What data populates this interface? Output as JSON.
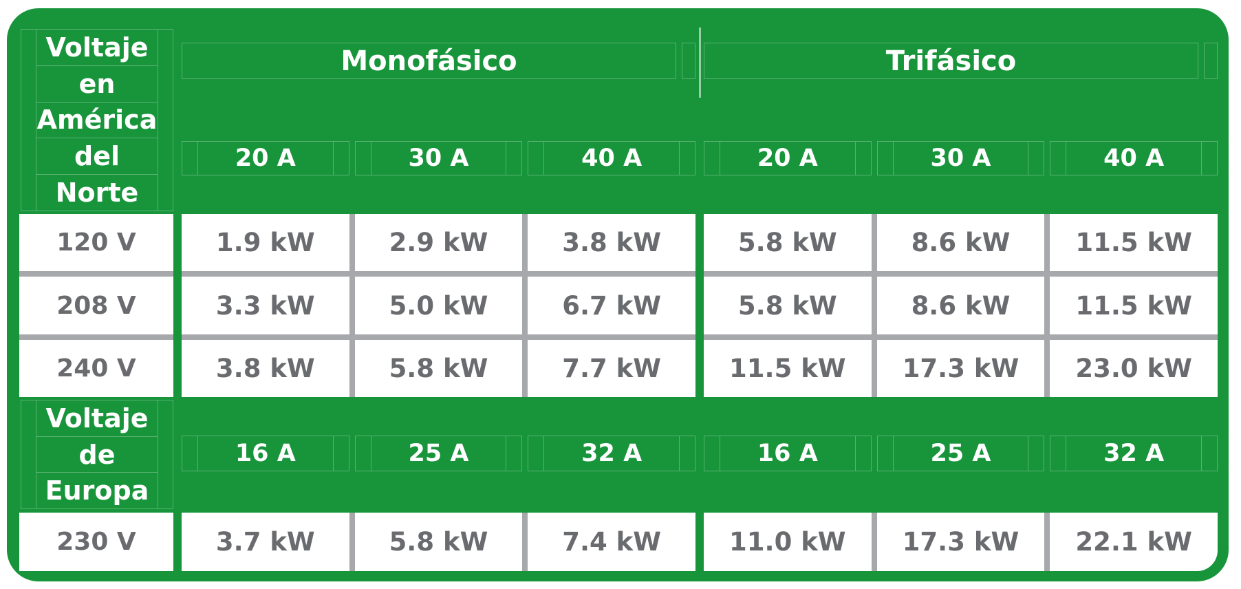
{
  "colors": {
    "green": "#18953B",
    "grid_line_light": "rgba(255,255,255,0.28)",
    "cell_text_gray": "#696B6E",
    "separator_gray": "#A6A8AB",
    "header_text": "#FFFFFF"
  },
  "header_na": {
    "words": [
      "Voltaje",
      "en",
      "América",
      "del",
      "Norte"
    ],
    "mono": "Monofásico",
    "tri": "Trifásico",
    "amps": [
      "20 A",
      "30 A",
      "40 A",
      "20 A",
      "30 A",
      "40 A"
    ]
  },
  "rows_na": [
    {
      "v": "120 V",
      "c": [
        "1.9 kW",
        "2.9 kW",
        "3.8 kW",
        "5.8 kW",
        "8.6 kW",
        "11.5 kW"
      ]
    },
    {
      "v": "208 V",
      "c": [
        "3.3 kW",
        "5.0 kW",
        "6.7 kW",
        "5.8 kW",
        "8.6 kW",
        "11.5 kW"
      ]
    },
    {
      "v": "240 V",
      "c": [
        "3.8 kW",
        "5.8 kW",
        "7.7 kW",
        "11.5 kW",
        "17.3 kW",
        "23.0 kW"
      ]
    }
  ],
  "header_eu": {
    "words": [
      "Voltaje",
      "de",
      "Europa"
    ],
    "amps": [
      "16 A",
      "25 A",
      "32 A",
      "16 A",
      "25 A",
      "32 A"
    ]
  },
  "rows_eu": [
    {
      "v": "230 V",
      "c": [
        "3.7 kW",
        "5.8 kW",
        "7.4 kW",
        "11.0 kW",
        "17.3 kW",
        "22.1 kW"
      ]
    }
  ],
  "chart_data": {
    "type": "table",
    "phase_groups": [
      "Monofásico",
      "Trifásico"
    ],
    "sections": [
      {
        "region_header": "Voltaje en América del Norte",
        "amp_columns": {
          "Monofásico": [
            "20 A",
            "30 A",
            "40 A"
          ],
          "Trifásico": [
            "20 A",
            "30 A",
            "40 A"
          ]
        },
        "rows": [
          {
            "voltage": "120 V",
            "kW": [
              1.9,
              2.9,
              3.8,
              5.8,
              8.6,
              11.5
            ]
          },
          {
            "voltage": "208 V",
            "kW": [
              3.3,
              5.0,
              6.7,
              5.8,
              8.6,
              11.5
            ]
          },
          {
            "voltage": "240 V",
            "kW": [
              3.8,
              5.8,
              7.7,
              11.5,
              17.3,
              23.0
            ]
          }
        ]
      },
      {
        "region_header": "Voltaje de Europa",
        "amp_columns": {
          "Monofásico": [
            "16 A",
            "25 A",
            "32 A"
          ],
          "Trifásico": [
            "16 A",
            "25 A",
            "32 A"
          ]
        },
        "rows": [
          {
            "voltage": "230 V",
            "kW": [
              3.7,
              5.8,
              7.4,
              11.0,
              17.3,
              22.1
            ]
          }
        ]
      }
    ],
    "units": {
      "voltage": "V",
      "current": "A",
      "power": "kW"
    },
    "layout": {
      "grid": true,
      "legend_position": "none"
    }
  }
}
